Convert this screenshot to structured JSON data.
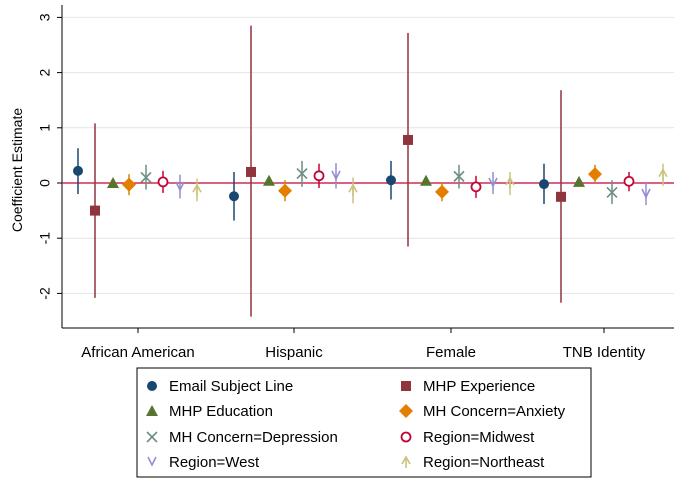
{
  "chart_data": {
    "type": "scatter",
    "title": "",
    "xlabel": "",
    "ylabel": "Coefficient Estimate",
    "ylim": [
      -2.6,
      3.2
    ],
    "yticks": [
      -2,
      -1,
      0,
      1,
      2,
      3
    ],
    "grid": true,
    "reference_line": 0,
    "legend_position": "bottom",
    "categories": [
      "African American",
      "Hispanic",
      "Female",
      "TNB Identity"
    ],
    "series": [
      {
        "name": "Email Subject Line",
        "marker": "circle",
        "color": "#1a476f",
        "values": [
          0.22,
          -0.24,
          0.05,
          -0.02
        ],
        "ci_low": [
          -0.2,
          -0.68,
          -0.3,
          -0.38
        ],
        "ci_high": [
          0.63,
          0.2,
          0.4,
          0.35
        ]
      },
      {
        "name": "MHP Experience",
        "marker": "square",
        "color": "#90353b",
        "values": [
          -0.5,
          0.2,
          0.78,
          -0.25
        ],
        "ci_low": [
          -2.08,
          -2.42,
          -1.15,
          -2.17
        ],
        "ci_high": [
          1.08,
          2.85,
          2.72,
          1.68
        ]
      },
      {
        "name": "MHP Education",
        "marker": "triangle",
        "color": "#55752f",
        "values": [
          0.0,
          0.04,
          0.04,
          0.02
        ],
        "ci_low": [
          -0.05,
          -0.01,
          -0.01,
          -0.03
        ],
        "ci_high": [
          0.05,
          0.09,
          0.09,
          0.07
        ]
      },
      {
        "name": "MH Concern=Anxiety",
        "marker": "diamond",
        "color": "#e37e00",
        "values": [
          -0.03,
          -0.14,
          -0.16,
          0.16
        ],
        "ci_low": [
          -0.22,
          -0.33,
          -0.33,
          0.0
        ],
        "ci_high": [
          0.16,
          0.05,
          0.02,
          0.33
        ]
      },
      {
        "name": "MH Concern=Depression",
        "marker": "x",
        "color": "#6e8e84",
        "values": [
          0.1,
          0.17,
          0.12,
          -0.17
        ],
        "ci_low": [
          -0.12,
          -0.07,
          -0.1,
          -0.38
        ],
        "ci_high": [
          0.33,
          0.4,
          0.33,
          0.05
        ]
      },
      {
        "name": "Region=Midwest",
        "marker": "hollow-circle",
        "color": "#c10534",
        "values": [
          0.02,
          0.13,
          -0.07,
          0.03
        ],
        "ci_low": [
          -0.18,
          -0.09,
          -0.27,
          -0.15
        ],
        "ci_high": [
          0.22,
          0.35,
          0.13,
          0.2
        ]
      },
      {
        "name": "Region=West",
        "marker": "v",
        "color": "#938dd2",
        "values": [
          -0.07,
          0.13,
          0.0,
          -0.2
        ],
        "ci_low": [
          -0.28,
          -0.1,
          -0.2,
          -0.4
        ],
        "ci_high": [
          0.15,
          0.36,
          0.2,
          0.02
        ]
      },
      {
        "name": "Region=Northeast",
        "marker": "arrow-up",
        "color": "#cac27e",
        "values": [
          -0.13,
          -0.13,
          0.0,
          0.15
        ],
        "ci_low": [
          -0.33,
          -0.37,
          -0.22,
          -0.05
        ],
        "ci_high": [
          0.08,
          0.1,
          0.2,
          0.35
        ]
      }
    ]
  }
}
